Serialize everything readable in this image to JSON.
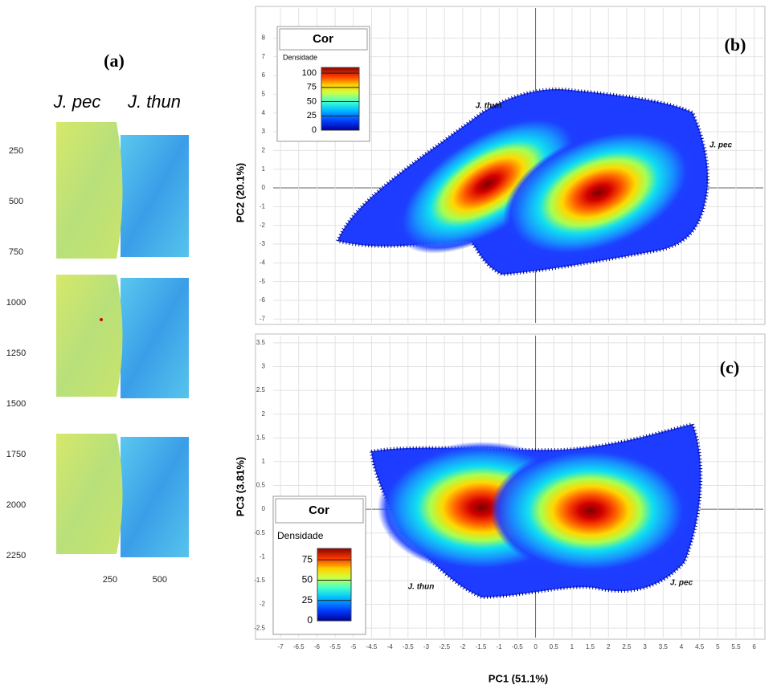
{
  "panel_a": {
    "label": "(a)",
    "columns": [
      "J. pec",
      "J. thun"
    ],
    "yticks": [
      250,
      500,
      750,
      1000,
      1250,
      1500,
      1750,
      2000,
      2250
    ],
    "ylim": [
      0,
      2250
    ],
    "xticks": [
      250,
      500
    ],
    "xlim": [
      0,
      650
    ]
  },
  "chart_data": [
    {
      "type": "scatter",
      "panel_label": "(b)",
      "ylabel": "PC2 (20.1%)",
      "xlim": [
        -7.2,
        6.25
      ],
      "ylim": [
        -7.2,
        9.6
      ],
      "yticks": [
        -7,
        -6,
        -5,
        -4,
        -3,
        -2,
        -1,
        0,
        1,
        2,
        3,
        4,
        5,
        6,
        7,
        8
      ],
      "annotations": [
        "J. thun",
        "J. pec"
      ],
      "grid": true,
      "legend": {
        "title": "Cor",
        "label": "Densidade",
        "ticks": [
          0,
          25,
          50,
          75,
          100
        ],
        "lim": [
          0,
          110
        ]
      }
    },
    {
      "type": "scatter",
      "panel_label": "(c)",
      "xlabel": "PC1 (51.1%)",
      "ylabel": "PC3 (3.81%)",
      "xlim": [
        -7.2,
        6.25
      ],
      "ylim": [
        -2.7,
        3.65
      ],
      "xticks": [
        -7,
        -6.5,
        -6,
        -5.5,
        -5,
        -4.5,
        -4,
        -3.5,
        -3,
        -2.5,
        -2,
        -1.5,
        -1,
        -0.5,
        0,
        0.5,
        1,
        1.5,
        2,
        2.5,
        3,
        3.5,
        4,
        4.5,
        5,
        5.5,
        6
      ],
      "yticks": [
        -2.5,
        -2,
        -1.5,
        -1,
        -0.5,
        0,
        0.5,
        1,
        1.5,
        2,
        2.5,
        3,
        3.5
      ],
      "annotations": [
        "J. thun",
        "J. pec"
      ],
      "grid": true,
      "legend": {
        "title": "Cor",
        "label": "Densidade",
        "ticks": [
          0,
          25,
          50,
          75
        ],
        "lim": [
          0,
          89
        ]
      }
    }
  ]
}
